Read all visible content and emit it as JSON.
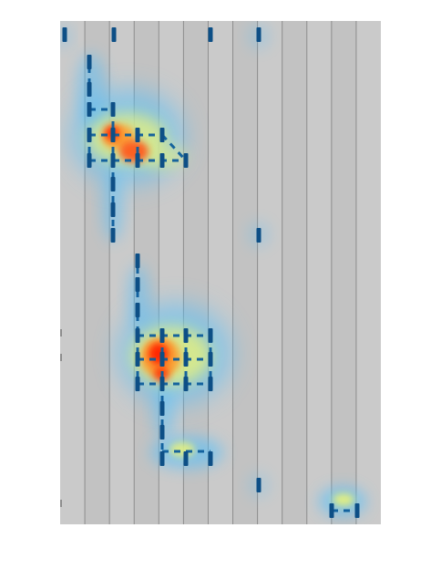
{
  "colors": {
    "page_background": "#ffffff",
    "panel_background": "#c6c6c6",
    "column_line": "#7f7f7f",
    "node": "#0d4f86",
    "edge": "#0d5d9c",
    "heat_low": "#4ec0ff",
    "heat_mid": "#e9f27a",
    "heat_high": "#ff2200"
  },
  "grid": {
    "column_count": 13
  },
  "heatmap": {
    "type": "attention-heatmap-overlay",
    "hotspots": [
      {
        "id": "upper-cluster-core",
        "intensity": 1.0
      },
      {
        "id": "upper-cluster-tail",
        "intensity": 0.85
      },
      {
        "id": "middle-cluster-core",
        "intensity": 1.0
      },
      {
        "id": "middle-cluster-lower",
        "intensity": 0.9
      },
      {
        "id": "lower-bar",
        "intensity": 0.75
      },
      {
        "id": "bottom-right-bar",
        "intensity": 0.7
      }
    ]
  }
}
